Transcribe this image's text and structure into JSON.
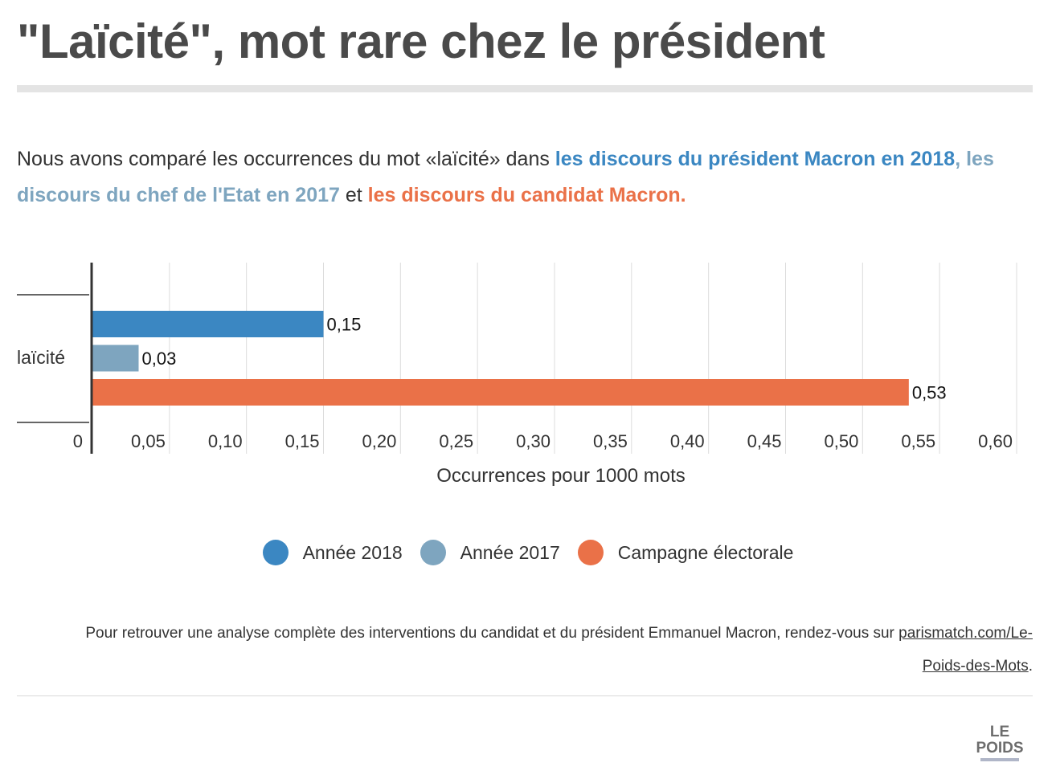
{
  "title": "\"Laïcité\", mot rare chez le président",
  "intro": {
    "part1": "Nous avons comparé les occurrences du mot «laïcité» dans ",
    "part2": "les discours du président Macron en 2018",
    "part3": ", ",
    "part4": "les discours du chef de l'Etat en 2017",
    "part5": " et ",
    "part6": "les discours du candidat Macron."
  },
  "colors": {
    "annee2018": "#3b87c2",
    "annee2017": "#7ea5bf",
    "campagne": "#ea7148",
    "text": "#333333"
  },
  "chart_data": {
    "type": "bar",
    "orientation": "horizontal",
    "categories": [
      "laïcité"
    ],
    "series": [
      {
        "name": "Année 2018",
        "values": [
          0.15
        ],
        "labels": [
          "0,15"
        ],
        "color": "#3b87c2"
      },
      {
        "name": "Année 2017",
        "values": [
          0.03
        ],
        "labels": [
          "0,03"
        ],
        "color": "#7ea5bf"
      },
      {
        "name": "Campagne électorale",
        "values": [
          0.53
        ],
        "labels": [
          "0,53"
        ],
        "color": "#ea7148"
      }
    ],
    "xlabel": "Occurrences pour 1000 mots",
    "ylabel": "",
    "xlim": [
      0,
      0.6
    ],
    "xticks": [
      0,
      0.05,
      0.1,
      0.15,
      0.2,
      0.25,
      0.3,
      0.35,
      0.4,
      0.45,
      0.5,
      0.55,
      0.6
    ],
    "xtick_labels": [
      "0",
      "0,05",
      "0,10",
      "0,15",
      "0,20",
      "0,25",
      "0,30",
      "0,35",
      "0,40",
      "0,45",
      "0,50",
      "0,55",
      "0,60"
    ],
    "grid": true,
    "legend_position": "bottom"
  },
  "legend": [
    {
      "label": "Année 2018",
      "color": "#3b87c2"
    },
    {
      "label": "Année 2017",
      "color": "#7ea5bf"
    },
    {
      "label": "Campagne électorale",
      "color": "#ea7148"
    }
  ],
  "footnote": {
    "text": "Pour retrouver une analyse complète des interventions du candidat et du président Emmanuel Macron, rendez-vous sur ",
    "link": "parismatch.com/Le-Poids-des-Mots",
    "end": "."
  },
  "logo": {
    "line1": "LE",
    "line2": "POIDS"
  }
}
